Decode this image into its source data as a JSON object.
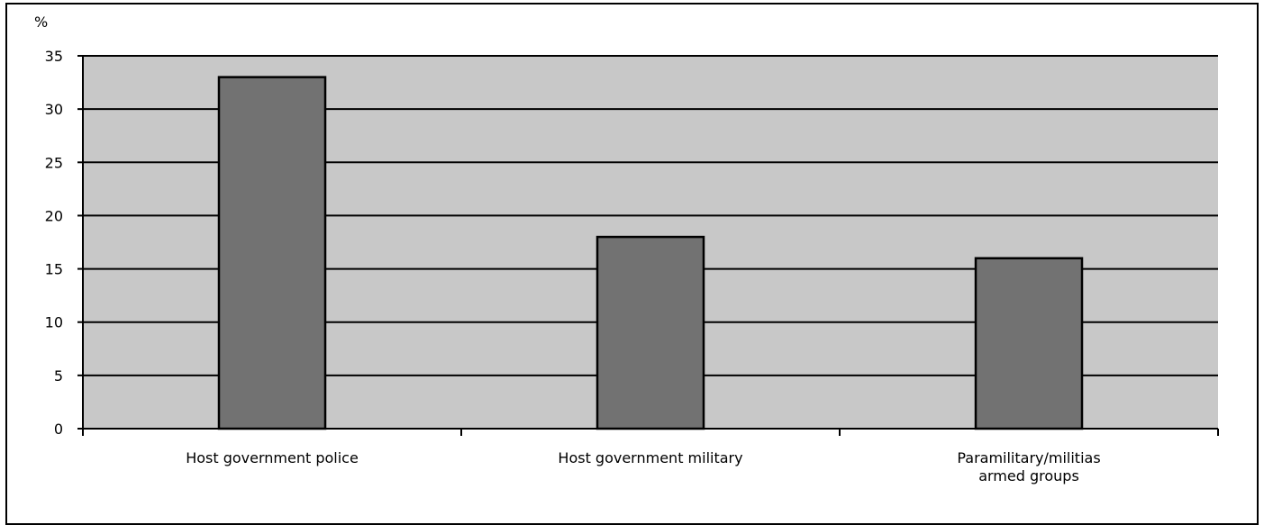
{
  "chart_data": {
    "type": "bar",
    "ylabel": "%",
    "categories": [
      [
        "Host government police"
      ],
      [
        "Host government military"
      ],
      [
        "Paramilitary/militias",
        "armed groups"
      ]
    ],
    "values": [
      33,
      18,
      16
    ],
    "ylim": [
      0,
      35
    ],
    "yticks": [
      0,
      5,
      10,
      15,
      20,
      25,
      30,
      35
    ],
    "grid": true,
    "legend": "none",
    "colors": {
      "plot_background": "#c8c8c8",
      "bar_fill": "#727272",
      "gridline": "#000000",
      "axis": "#000000"
    }
  }
}
